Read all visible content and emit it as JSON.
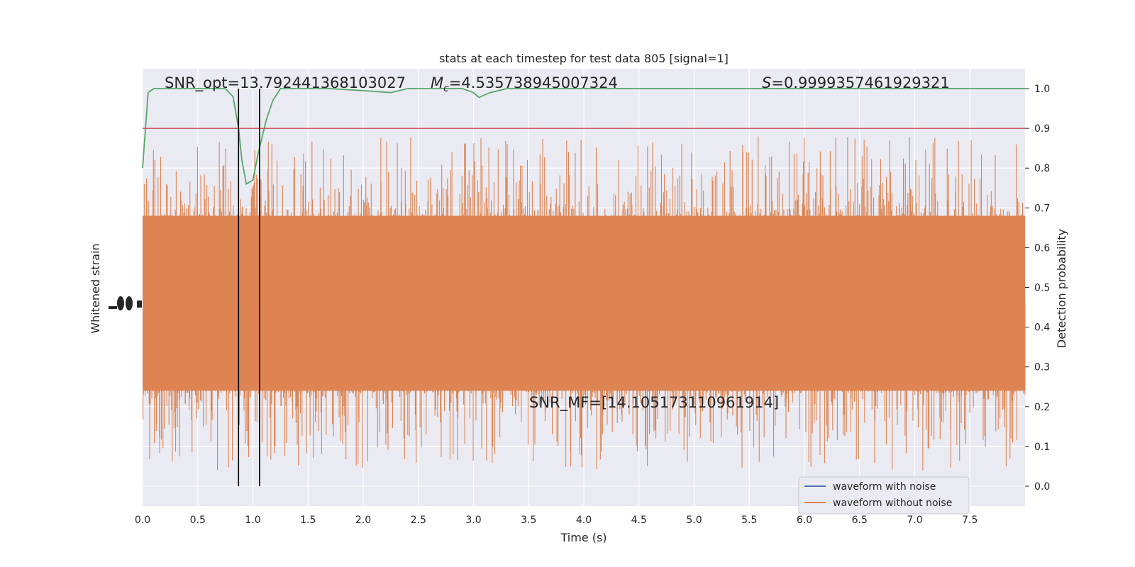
{
  "chart_data": {
    "type": "line",
    "title": "stats at each timestep for test data 805 [signal=1]",
    "xlabel": "Time (s)",
    "ylabel_left": "Whitened strain",
    "ylabel_right": "Detection probability",
    "xlim": [
      0.0,
      8.0
    ],
    "ylim_right": [
      -0.05,
      1.05
    ],
    "grid": true,
    "x_ticks": [
      "0.0",
      "0.5",
      "1.0",
      "1.5",
      "2.0",
      "2.5",
      "3.0",
      "3.5",
      "4.0",
      "4.5",
      "5.0",
      "5.5",
      "6.0",
      "6.5",
      "7.0",
      "7.5"
    ],
    "y_ticks_right": [
      "0.0",
      "0.1",
      "0.2",
      "0.3",
      "0.4",
      "0.5",
      "0.6",
      "0.7",
      "0.8",
      "0.9",
      "1.0"
    ],
    "annotations": {
      "snr_opt": "SNR_opt=13.792441368103027",
      "mc_symbol": "M",
      "mc_sub": "c",
      "mc_value": "=4.535738945007324",
      "s_symbol": "S",
      "s_value": "=0.9999357461929321",
      "snr_mf": "SNR_MF=[14.105173110961914]"
    },
    "series": [
      {
        "name": "waveform with noise",
        "color": "#4c72b0"
      },
      {
        "name": "waveform without noise",
        "color": "#dd8452",
        "envelope": {
          "center": 0.46,
          "core_half_width": 0.22,
          "max_spike": 0.88
        }
      },
      {
        "color": "#55a868",
        "x": [
          0.0,
          0.05,
          0.1,
          0.2,
          0.4,
          0.6,
          0.75,
          0.82,
          0.87,
          0.9,
          0.94,
          1.0,
          1.05,
          1.12,
          1.18,
          1.25,
          1.4,
          1.7,
          2.0,
          2.25,
          2.4,
          2.6,
          2.9,
          3.0,
          3.05,
          3.15,
          3.3,
          3.6,
          4.0,
          5.0,
          6.0,
          7.0,
          8.0
        ],
        "y": [
          0.8,
          0.99,
          1.0,
          1.0,
          1.0,
          1.0,
          1.0,
          0.98,
          0.9,
          0.82,
          0.76,
          0.77,
          0.84,
          0.92,
          0.97,
          1.0,
          1.0,
          1.0,
          0.995,
          0.99,
          1.0,
          1.0,
          1.0,
          0.99,
          0.978,
          0.99,
          1.0,
          1.0,
          1.0,
          1.0,
          1.0,
          1.0,
          1.0
        ]
      }
    ],
    "threshold": {
      "y": 0.9,
      "color": "#c44e52"
    },
    "event_lines": {
      "x": [
        0.87,
        1.06
      ],
      "color": "#000000"
    },
    "legend": {
      "placement": "lower-right"
    }
  }
}
